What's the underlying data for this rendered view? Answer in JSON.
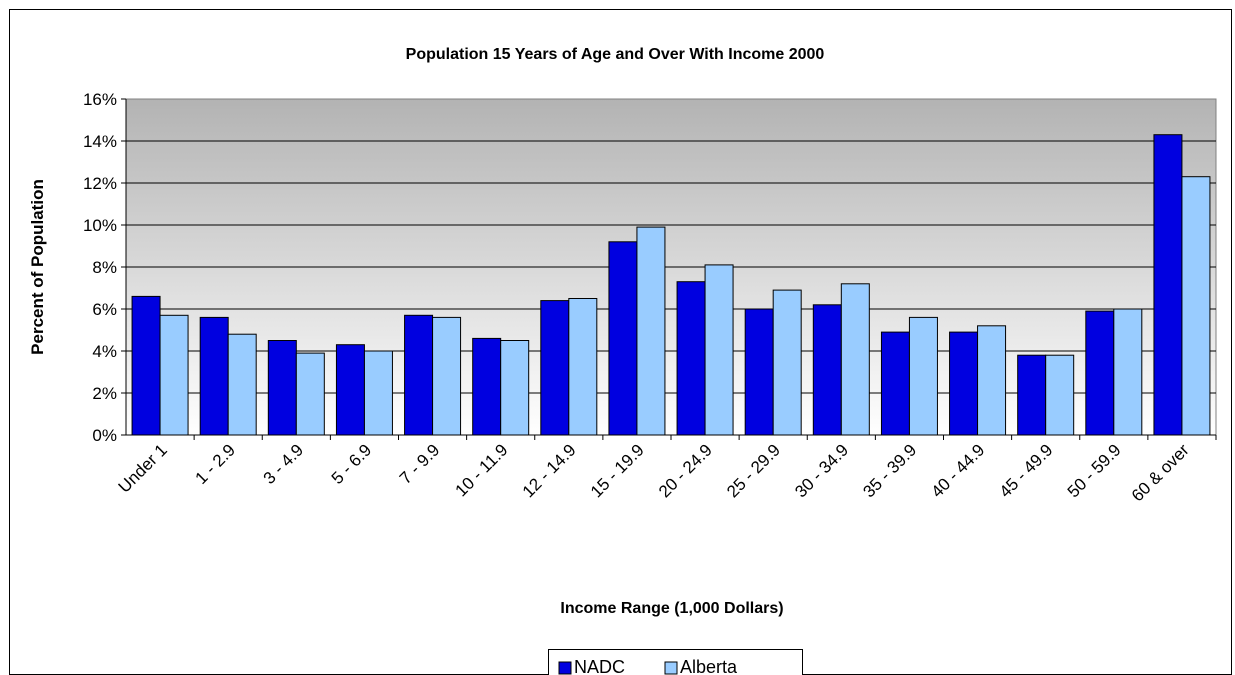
{
  "chart_data": {
    "type": "bar",
    "title": "Population 15 Years of Age and Over With Income 2000",
    "xlabel": "Income Range (1,000 Dollars)",
    "ylabel": "Percent of Population",
    "categories": [
      "Under 1",
      "1 - 2.9",
      "3 - 4.9",
      "5 - 6.9",
      "7 - 9.9",
      "10 - 11.9",
      "12 - 14.9",
      "15 - 19.9",
      "20 - 24.9",
      "25 - 29.9",
      "30 - 34.9",
      "35 - 39.9",
      "40 - 44.9",
      "45 - 49.9",
      "50 - 59.9",
      "60 & over"
    ],
    "series": [
      {
        "name": "NADC",
        "color": "#0000E0",
        "values": [
          6.6,
          5.6,
          4.5,
          4.3,
          5.7,
          4.6,
          6.4,
          9.2,
          7.3,
          6.0,
          6.2,
          4.9,
          4.9,
          3.8,
          5.9,
          14.3
        ]
      },
      {
        "name": "Alberta",
        "color": "#99CCFF",
        "values": [
          5.7,
          4.8,
          3.9,
          4.0,
          5.6,
          4.5,
          6.5,
          9.9,
          8.1,
          6.9,
          7.2,
          5.6,
          5.2,
          3.8,
          6.0,
          12.3
        ]
      }
    ],
    "ylim": [
      0,
      16
    ],
    "yticks": [
      "0%",
      "2%",
      "4%",
      "6%",
      "8%",
      "10%",
      "12%",
      "14%",
      "16%"
    ],
    "grid": true,
    "legend_position": "bottom-center",
    "plot_background": "gradient gray to white"
  }
}
